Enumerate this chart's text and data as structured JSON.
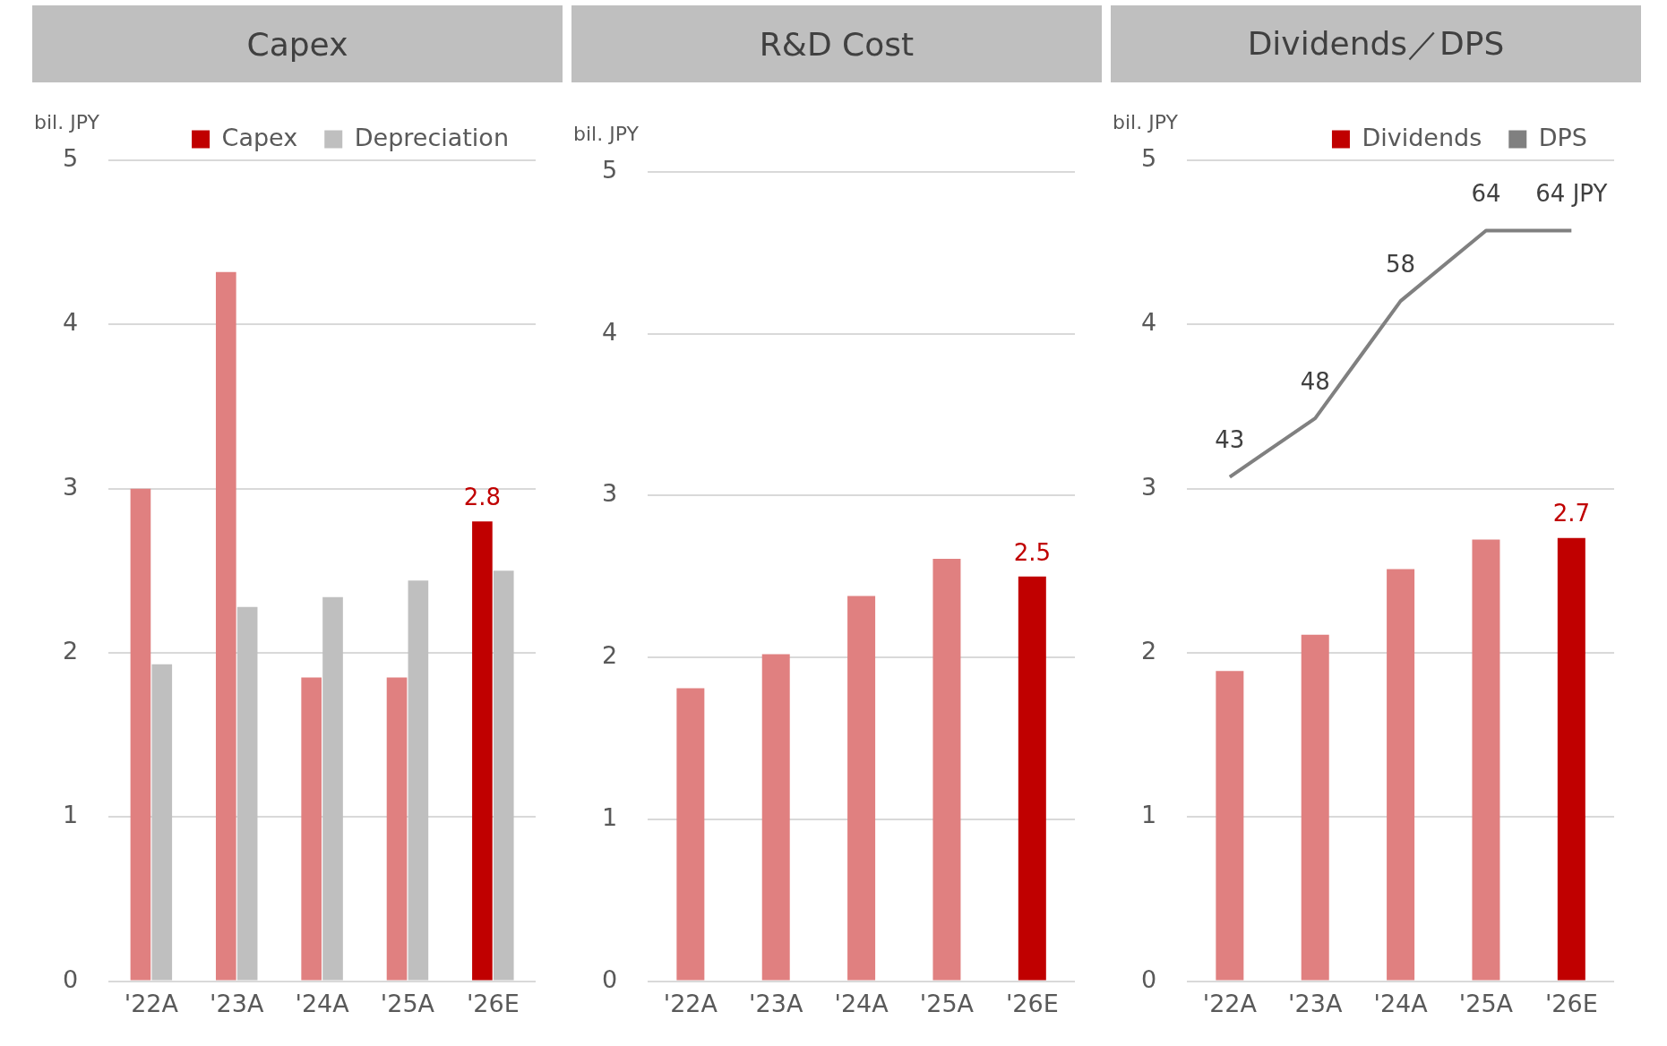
{
  "chart_data": [
    {
      "type": "bar",
      "title": "Capex",
      "ylabel": "bil. JPY",
      "categories": [
        "'22A",
        "'23A",
        "'24A",
        "'25A",
        "'26E"
      ],
      "ylim": [
        0,
        5
      ],
      "yticks": [
        0,
        1,
        2,
        3,
        4,
        5
      ],
      "grid": "y",
      "legend": "top",
      "series": [
        {
          "name": "Capex",
          "color": "#c00000",
          "colors": [
            "#e08080",
            "#e08080",
            "#e08080",
            "#e08080",
            "#c00000"
          ],
          "values": [
            3.0,
            4.32,
            1.85,
            1.85,
            2.8
          ],
          "value_labels": [
            null,
            null,
            null,
            null,
            "2.8"
          ]
        },
        {
          "name": "Depreciation",
          "color": "#bfbfbf",
          "values": [
            1.93,
            2.28,
            2.34,
            2.44,
            2.5
          ]
        }
      ]
    },
    {
      "type": "bar",
      "title": "R&D Cost",
      "ylabel": "bil. JPY",
      "categories": [
        "'22A",
        "'23A",
        "'24A",
        "'25A",
        "'26E"
      ],
      "ylim": [
        0,
        5
      ],
      "yticks": [
        0,
        1,
        2,
        3,
        4,
        5
      ],
      "grid": "y",
      "series": [
        {
          "color": "#c00000",
          "colors": [
            "#e08080",
            "#e08080",
            "#e08080",
            "#e08080",
            "#c00000"
          ],
          "values": [
            1.81,
            2.02,
            2.38,
            2.61,
            2.5
          ],
          "value_labels": [
            null,
            null,
            null,
            null,
            "2.5"
          ]
        }
      ]
    },
    {
      "type": "bar",
      "title": "Dividends／DPS",
      "ylabel": "bil. JPY",
      "categories": [
        "'22A",
        "'23A",
        "'24A",
        "'25A",
        "'26E"
      ],
      "ylim": [
        0,
        5
      ],
      "yticks": [
        0,
        1,
        2,
        3,
        4,
        5
      ],
      "y2lim": [
        0,
        70
      ],
      "grid": "y",
      "legend": "top",
      "marker": "none",
      "series": [
        {
          "name": "Dividends",
          "color": "#c00000",
          "colors": [
            "#e08080",
            "#e08080",
            "#e08080",
            "#e08080",
            "#c00000"
          ],
          "values": [
            1.89,
            2.11,
            2.51,
            2.69,
            2.7
          ],
          "value_labels": [
            null,
            null,
            null,
            null,
            "2.7"
          ]
        },
        {
          "name": "DPS",
          "type": "line",
          "axis": "y2",
          "color": "#808080",
          "values": [
            43,
            48,
            58,
            64,
            64
          ],
          "value_labels": [
            "43",
            "48",
            "58",
            "64",
            "64 JPY"
          ]
        }
      ]
    }
  ]
}
